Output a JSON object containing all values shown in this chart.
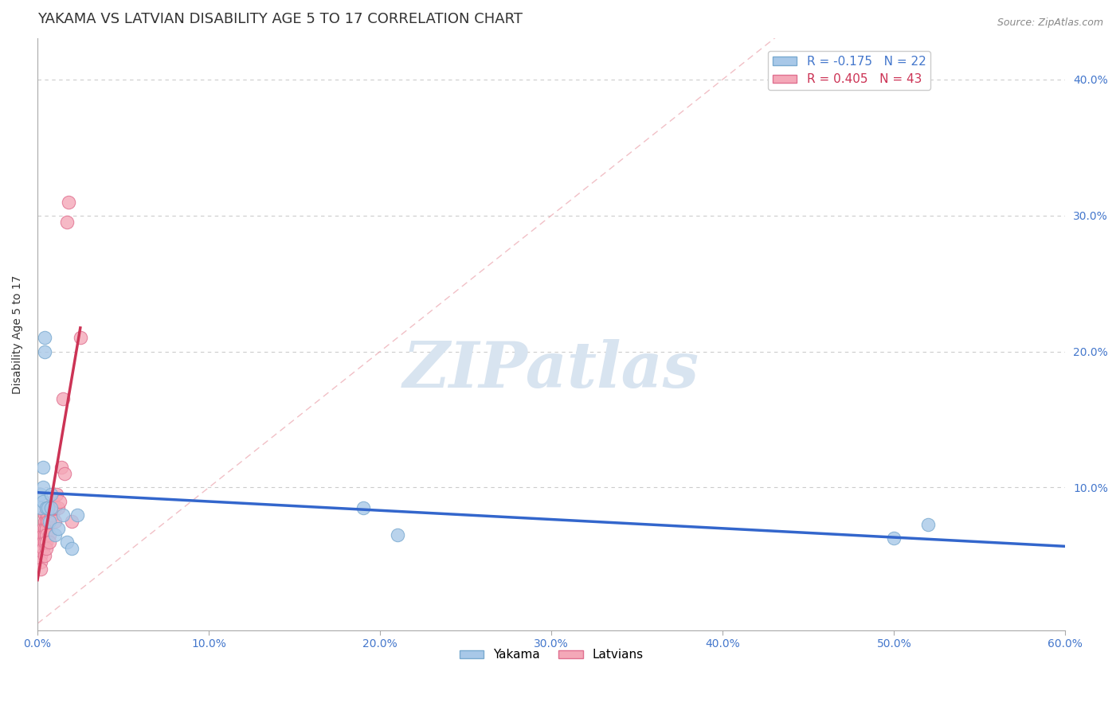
{
  "title": "YAKAMA VS LATVIAN DISABILITY AGE 5 TO 17 CORRELATION CHART",
  "source_text": "Source: ZipAtlas.com",
  "ylabel": "Disability Age 5 to 17",
  "xlim": [
    0.0,
    0.6
  ],
  "ylim": [
    -0.005,
    0.43
  ],
  "xticks": [
    0.0,
    0.1,
    0.2,
    0.3,
    0.4,
    0.5,
    0.6
  ],
  "xtick_labels": [
    "0.0%",
    "10.0%",
    "20.0%",
    "30.0%",
    "40.0%",
    "50.0%",
    "60.0%"
  ],
  "yticks": [
    0.1,
    0.2,
    0.3,
    0.4
  ],
  "ytick_labels": [
    "10.0%",
    "20.0%",
    "30.0%",
    "40.0%"
  ],
  "yakama_color": "#A8C8E8",
  "latvian_color": "#F4A8B8",
  "yakama_edge_color": "#7AAAD0",
  "latvian_edge_color": "#E07090",
  "blue_line_color": "#3366CC",
  "pink_line_color": "#CC3355",
  "ref_line_color": "#EEB0B8",
  "grid_color": "#CCCCCC",
  "watermark_color": "#D8E4F0",
  "R_yakama": -0.175,
  "N_yakama": 22,
  "R_latvian": 0.405,
  "N_latvian": 43,
  "yakama_x": [
    0.002,
    0.002,
    0.003,
    0.003,
    0.003,
    0.004,
    0.004,
    0.005,
    0.006,
    0.007,
    0.008,
    0.008,
    0.01,
    0.012,
    0.015,
    0.017,
    0.02,
    0.023,
    0.19,
    0.21,
    0.5,
    0.52
  ],
  "yakama_y": [
    0.085,
    0.095,
    0.09,
    0.1,
    0.115,
    0.2,
    0.21,
    0.085,
    0.085,
    0.075,
    0.085,
    0.095,
    0.065,
    0.07,
    0.08,
    0.06,
    0.055,
    0.08,
    0.085,
    0.065,
    0.063,
    0.073
  ],
  "latvian_x": [
    0.002,
    0.002,
    0.002,
    0.002,
    0.002,
    0.002,
    0.003,
    0.003,
    0.003,
    0.003,
    0.004,
    0.004,
    0.004,
    0.004,
    0.004,
    0.004,
    0.005,
    0.005,
    0.005,
    0.005,
    0.005,
    0.005,
    0.005,
    0.006,
    0.006,
    0.007,
    0.007,
    0.008,
    0.008,
    0.009,
    0.009,
    0.01,
    0.01,
    0.011,
    0.012,
    0.013,
    0.014,
    0.015,
    0.016,
    0.017,
    0.018,
    0.02,
    0.025
  ],
  "latvian_y": [
    0.065,
    0.06,
    0.055,
    0.05,
    0.045,
    0.04,
    0.07,
    0.065,
    0.06,
    0.055,
    0.08,
    0.075,
    0.07,
    0.065,
    0.06,
    0.05,
    0.085,
    0.08,
    0.075,
    0.07,
    0.065,
    0.06,
    0.055,
    0.08,
    0.075,
    0.065,
    0.06,
    0.085,
    0.08,
    0.09,
    0.08,
    0.085,
    0.075,
    0.095,
    0.085,
    0.09,
    0.115,
    0.165,
    0.11,
    0.295,
    0.31,
    0.075,
    0.21
  ],
  "title_fontsize": 13,
  "axis_label_fontsize": 10,
  "tick_fontsize": 10,
  "legend_fontsize": 11,
  "source_fontsize": 9,
  "marker_size": 140
}
